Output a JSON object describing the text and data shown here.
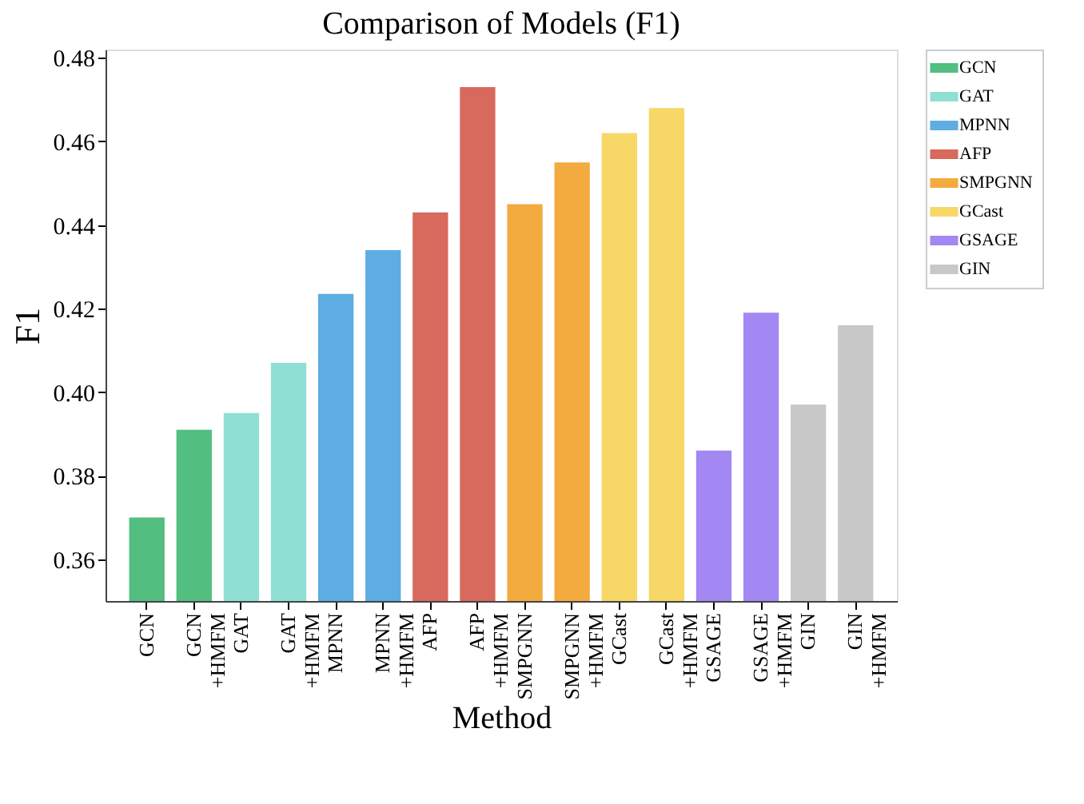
{
  "chart_data": {
    "type": "bar",
    "title": "Comparison of Models (F1)",
    "xlabel": "Method",
    "ylabel": "F1",
    "categories": [
      "GCN",
      "GCN\n+HMFM",
      "GAT",
      "GAT\n+HMFM",
      "MPNN",
      "MPNN\n+HMFM",
      "AFP",
      "AFP\n+HMFM",
      "SMPGNN",
      "SMPGNN\n+HMFM",
      "GCast",
      "GCast\n+HMFM",
      "GSAGE",
      "GSAGE\n+HMFM",
      "GIN",
      "GIN\n+HMFM"
    ],
    "series": [
      {
        "name": "GCN",
        "color": "#52be80",
        "values": [
          0.37,
          0.391,
          null,
          null,
          null,
          null,
          null,
          null,
          null,
          null,
          null,
          null,
          null,
          null,
          null,
          null
        ]
      },
      {
        "name": "GAT",
        "color": "#8fe0d2",
        "values": [
          null,
          null,
          0.395,
          0.407,
          null,
          null,
          null,
          null,
          null,
          null,
          null,
          null,
          null,
          null,
          null,
          null
        ]
      },
      {
        "name": "MPNN",
        "color": "#5dade2",
        "values": [
          null,
          null,
          null,
          null,
          0.4235,
          0.434,
          null,
          null,
          null,
          null,
          null,
          null,
          null,
          null,
          null,
          null
        ]
      },
      {
        "name": "AFP",
        "color": "#d7695d",
        "values": [
          null,
          null,
          null,
          null,
          null,
          null,
          0.443,
          0.473,
          null,
          null,
          null,
          null,
          null,
          null,
          null,
          null
        ]
      },
      {
        "name": "SMPGNN",
        "color": "#f3ab3f",
        "values": [
          null,
          null,
          null,
          null,
          null,
          null,
          null,
          null,
          0.445,
          0.455,
          null,
          null,
          null,
          null,
          null,
          null
        ]
      },
      {
        "name": "GCast",
        "color": "#f7d766",
        "values": [
          null,
          null,
          null,
          null,
          null,
          null,
          null,
          null,
          null,
          null,
          0.462,
          0.468,
          null,
          null,
          null,
          null
        ]
      },
      {
        "name": "GSAGE",
        "color": "#a387f2",
        "values": [
          null,
          null,
          null,
          null,
          null,
          null,
          null,
          null,
          null,
          null,
          null,
          null,
          0.386,
          0.419,
          null,
          null
        ]
      },
      {
        "name": "GIN",
        "color": "#c8c8c8",
        "values": [
          null,
          null,
          null,
          null,
          null,
          null,
          null,
          null,
          null,
          null,
          null,
          null,
          null,
          null,
          0.397,
          0.416
        ]
      }
    ],
    "ylim": [
      0.35,
      0.482
    ],
    "yticks": [
      {
        "value": 0.36,
        "label": "0.36"
      },
      {
        "value": 0.38,
        "label": "0.38"
      },
      {
        "value": 0.4,
        "label": "0.40"
      },
      {
        "value": 0.42,
        "label": "0.42"
      },
      {
        "value": 0.44,
        "label": "0.44"
      },
      {
        "value": 0.46,
        "label": "0.46"
      },
      {
        "value": 0.48,
        "label": "0.48"
      }
    ],
    "legend": "top right",
    "grid": false
  }
}
